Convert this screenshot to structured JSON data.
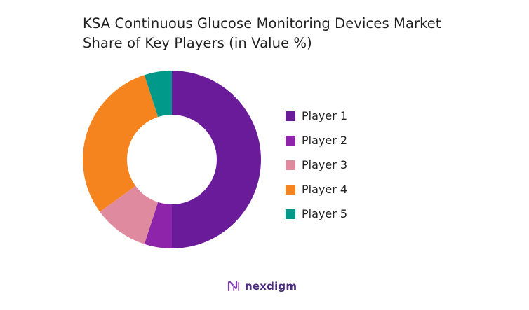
{
  "chart_data": {
    "type": "pie",
    "title": "KSA Continuous Glucose Monitoring Devices Market Share of Key Players (in Value %)",
    "title_lines": [
      "KSA Continuous Glucose Monitoring Devices Market",
      "Share of Key Players (in Value %)"
    ],
    "donut": true,
    "categories": [
      "Player 1",
      "Player 2",
      "Player 3",
      "Player 4",
      "Player 5"
    ],
    "values": [
      50,
      5,
      10,
      30,
      5
    ],
    "colors": [
      "#6a1b9a",
      "#8e24aa",
      "#e08aa0",
      "#f5841f",
      "#00998a"
    ],
    "legend_position": "right"
  },
  "footer": {
    "brand": "nexdigm",
    "brand_color": "#4a2a7a",
    "icon": "nexdigm-logo-icon"
  }
}
